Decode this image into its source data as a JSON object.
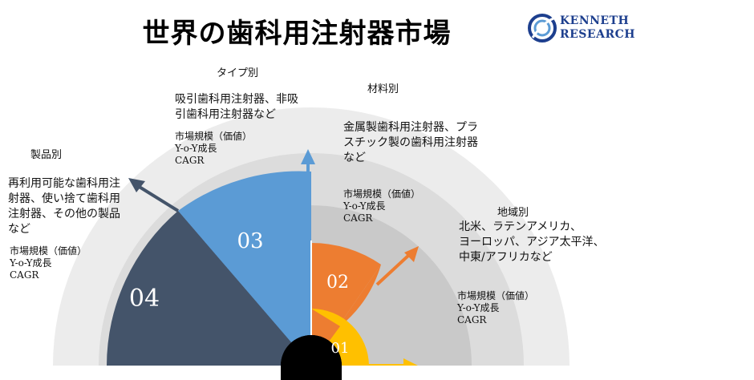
{
  "title": "世界の歯科用注射器市場",
  "logo": {
    "line1": "KENNETH",
    "line2": "RESEARCH"
  },
  "metric_labels": [
    "市場規模（価値）",
    "Y-o-Y成長",
    "CAGR"
  ],
  "segments": [
    {
      "number": "01",
      "heading": "",
      "description": [],
      "color": "#ffc000"
    },
    {
      "number": "02",
      "heading": "材料別",
      "description": [
        "金属製歯科用注射器、プラ",
        "スチック製の歯科用注射器",
        "など"
      ],
      "color": "#ed7d31"
    },
    {
      "number": "03",
      "heading": "タイプ別",
      "description": [
        "吸引歯科用注射器、非吸",
        "引歯科用注射器など"
      ],
      "color": "#5b9bd5"
    },
    {
      "number": "04",
      "heading": "製品別",
      "description": [
        "再利用可能な歯科用注",
        "射器、使い捨て歯科用",
        "注射器、その他の製品",
        "など"
      ],
      "color": "#44546a"
    }
  ],
  "region": {
    "heading": "地域別",
    "description": [
      "北米、ラテンアメリカ、",
      "ヨーロッパ、アジア太平洋、",
      "中東/アフリカなど"
    ]
  },
  "colors": {
    "ring_outer": "#ececec",
    "ring_mid": "#dcdcdc",
    "ring_inner": "#c9c9c9",
    "hub": "#000000",
    "logo": "#1d3f8e"
  }
}
